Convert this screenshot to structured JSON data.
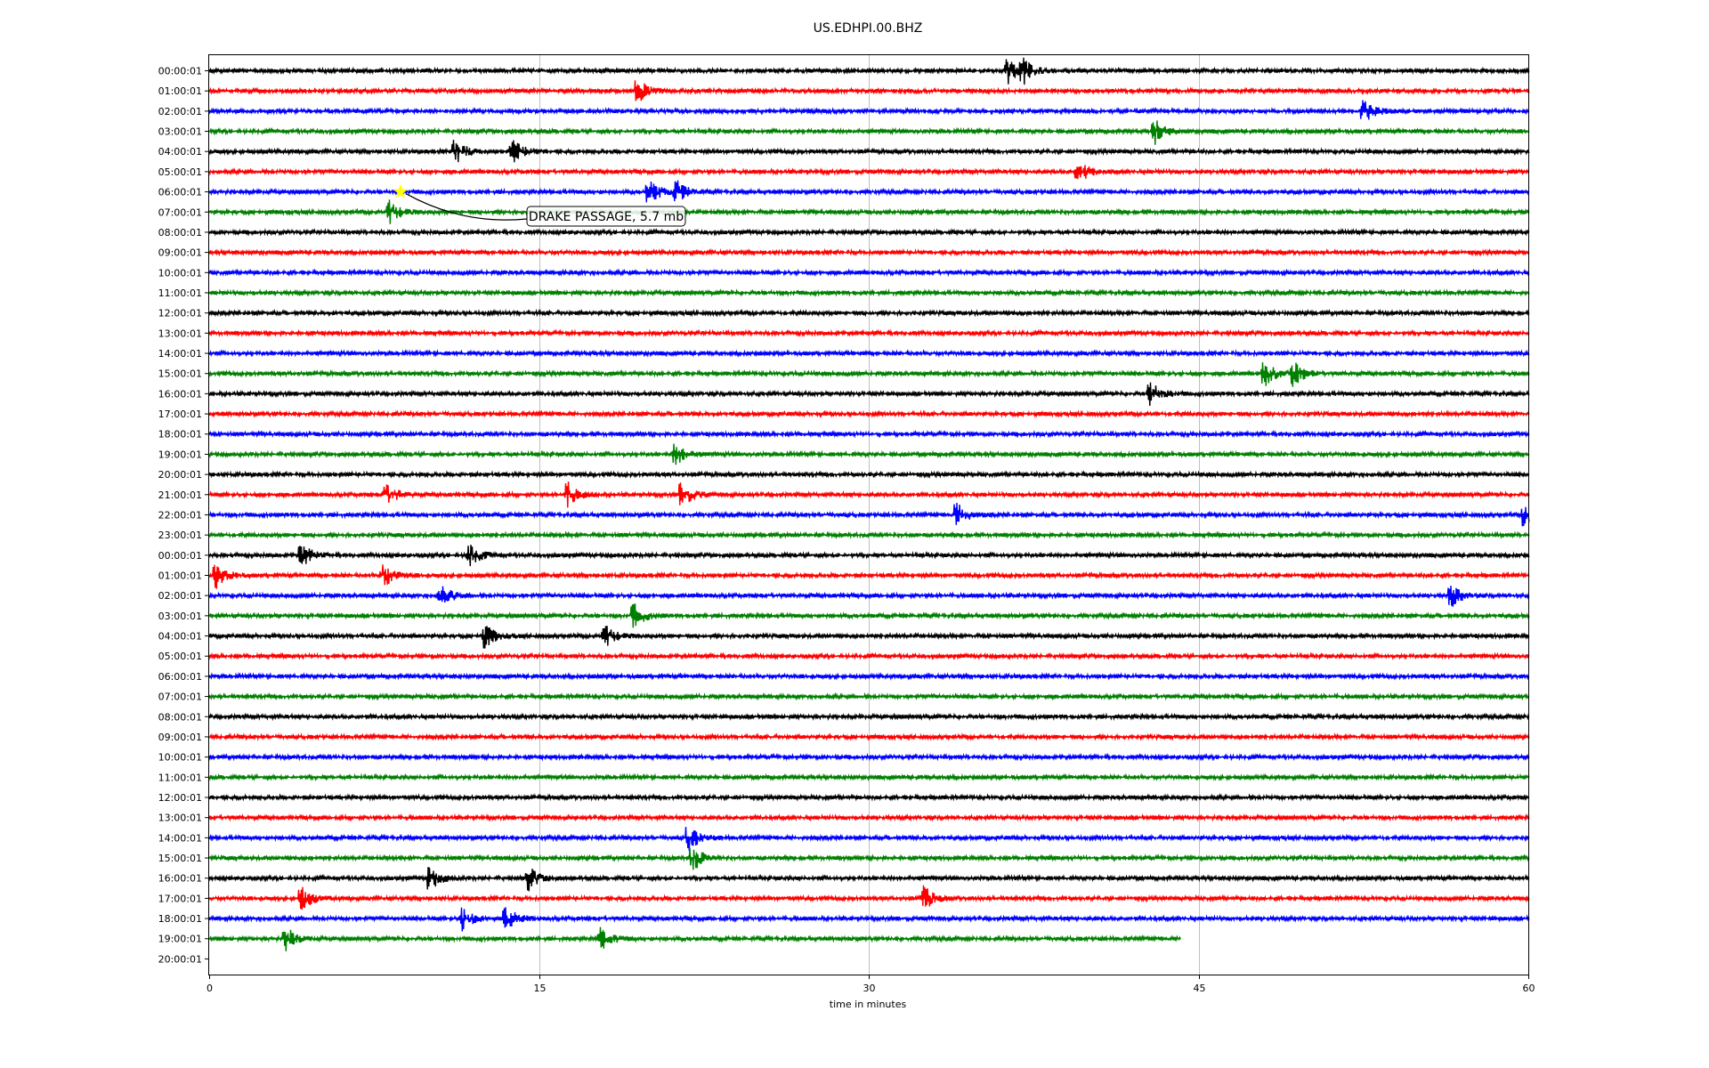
{
  "chart_data": {
    "type": "line",
    "title": "US.EDHPI.00.BHZ",
    "xlabel": "time in minutes",
    "ylabel": "",
    "xlim": [
      0,
      60
    ],
    "xticks": [
      "0",
      "15",
      "30",
      "45",
      "60"
    ],
    "grid": "vertical",
    "row_labels": [
      "00:00:01",
      "01:00:01",
      "02:00:01",
      "03:00:01",
      "04:00:01",
      "05:00:01",
      "06:00:01",
      "07:00:01",
      "08:00:01",
      "09:00:01",
      "10:00:01",
      "11:00:01",
      "12:00:01",
      "13:00:01",
      "14:00:01",
      "15:00:01",
      "16:00:01",
      "17:00:01",
      "18:00:01",
      "19:00:01",
      "20:00:01",
      "21:00:01",
      "22:00:01",
      "23:00:01",
      "00:00:01",
      "01:00:01",
      "02:00:01",
      "03:00:01",
      "04:00:01",
      "05:00:01",
      "06:00:01",
      "07:00:01",
      "08:00:01",
      "09:00:01",
      "10:00:01",
      "11:00:01",
      "12:00:01",
      "13:00:01",
      "14:00:01",
      "15:00:01",
      "16:00:01",
      "17:00:01",
      "18:00:01",
      "19:00:01",
      "20:00:01"
    ],
    "trace_colors": [
      "#000000",
      "#ff0000",
      "#0000ff",
      "#008000"
    ],
    "last_trace_end_minute": 44.2,
    "events": [
      {
        "row": 0,
        "minute": 36.3
      },
      {
        "row": 0,
        "minute": 37.0
      },
      {
        "row": 1,
        "minute": 19.5
      },
      {
        "row": 2,
        "minute": 52.5
      },
      {
        "row": 3,
        "minute": 43.0
      },
      {
        "row": 4,
        "minute": 11.2
      },
      {
        "row": 4,
        "minute": 13.8
      },
      {
        "row": 5,
        "minute": 39.5
      },
      {
        "row": 6,
        "minute": 20.0
      },
      {
        "row": 6,
        "minute": 21.2
      },
      {
        "row": 7,
        "minute": 8.2
      },
      {
        "row": 15,
        "minute": 48.0
      },
      {
        "row": 15,
        "minute": 49.3
      },
      {
        "row": 16,
        "minute": 42.8
      },
      {
        "row": 19,
        "minute": 21.2
      },
      {
        "row": 21,
        "minute": 8.0
      },
      {
        "row": 21,
        "minute": 16.3
      },
      {
        "row": 21,
        "minute": 21.5
      },
      {
        "row": 22,
        "minute": 34.0
      },
      {
        "row": 22,
        "minute": 59.8
      },
      {
        "row": 24,
        "minute": 4.2
      },
      {
        "row": 24,
        "minute": 11.8
      },
      {
        "row": 25,
        "minute": 0.3
      },
      {
        "row": 25,
        "minute": 7.9
      },
      {
        "row": 26,
        "minute": 10.5
      },
      {
        "row": 26,
        "minute": 56.5
      },
      {
        "row": 27,
        "minute": 19.3
      },
      {
        "row": 28,
        "minute": 18.0
      },
      {
        "row": 28,
        "minute": 12.5
      },
      {
        "row": 38,
        "minute": 21.8
      },
      {
        "row": 39,
        "minute": 22.0
      },
      {
        "row": 40,
        "minute": 10.0
      },
      {
        "row": 40,
        "minute": 14.5
      },
      {
        "row": 41,
        "minute": 4.2
      },
      {
        "row": 41,
        "minute": 32.5
      },
      {
        "row": 42,
        "minute": 11.5
      },
      {
        "row": 42,
        "minute": 13.5
      },
      {
        "row": 43,
        "minute": 3.5
      },
      {
        "row": 43,
        "minute": 17.8
      }
    ],
    "annotation": {
      "text": "DRAKE PASSAGE, 5.7 mb",
      "row": 6,
      "minute": 8.7,
      "marker": "star",
      "marker_color": "#ffff00"
    }
  }
}
